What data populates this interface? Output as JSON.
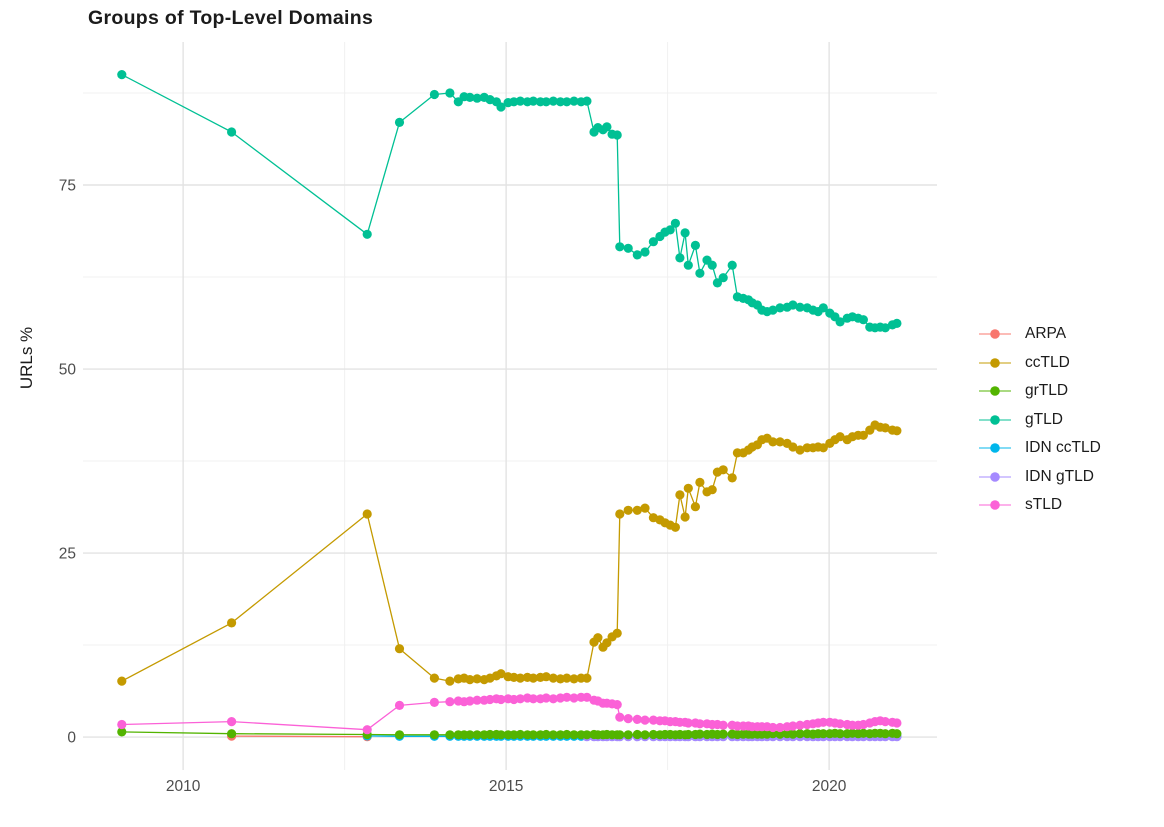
{
  "title": "Groups of Top-Level Domains",
  "colors": {
    "background": "#FFFFFF",
    "grid_major": "#E3E3E3",
    "grid_minor": "#F0F0F0",
    "tick_label": "#4D4D4D",
    "text": "#1B1B1B"
  },
  "legend": {
    "items": [
      {
        "label": "ARPA",
        "color": "#F8766D"
      },
      {
        "label": "ccTLD",
        "color": "#C49A00"
      },
      {
        "label": "grTLD",
        "color": "#53B400"
      },
      {
        "label": "gTLD",
        "color": "#00C094"
      },
      {
        "label": "IDN ccTLD",
        "color": "#00B6EB"
      },
      {
        "label": "IDN gTLD",
        "color": "#A58AFF"
      },
      {
        "label": "sTLD",
        "color": "#FB61D7"
      }
    ]
  },
  "chart_data": {
    "type": "line",
    "title": "Groups of Top-Level Domains",
    "xlabel": "",
    "ylabel": "URLs %",
    "legend_position": "right",
    "grid": true,
    "axis": {
      "xlim": [
        2008.45,
        2021.67
      ],
      "ylim": [
        -4.48,
        94.43
      ],
      "x_major": [
        2010,
        2015,
        2020
      ],
      "x_major_labels": [
        "2010",
        "2015",
        "2020"
      ],
      "x_minor": [
        2012.5,
        2017.5
      ],
      "y_major": [
        0,
        25,
        50,
        75
      ],
      "y_major_labels": [
        "0",
        "25",
        "50",
        "75"
      ],
      "y_minor": [
        12.5,
        37.5,
        62.5,
        87.5
      ]
    },
    "series": [
      {
        "name": "ARPA",
        "color": "#F8766D",
        "x": [
          2010.75,
          2012.85
        ],
        "y": [
          0.12,
          0.05
        ]
      },
      {
        "name": "IDN ccTLD",
        "color": "#00B6EB",
        "x": [
          2012.85,
          2013.35,
          2013.89,
          2014.13,
          2014.26,
          2014.35,
          2014.44,
          2014.55,
          2014.66,
          2014.75,
          2014.85,
          2014.92,
          2015.03,
          2015.12,
          2015.22,
          2015.33,
          2015.42,
          2015.53,
          2015.62,
          2015.73,
          2015.84,
          2015.94,
          2016.05,
          2016.16,
          2016.25,
          2016.36,
          2016.42,
          2016.5,
          2016.56,
          2016.64,
          2016.72,
          2016.76,
          2016.89,
          2017.03,
          2017.15,
          2017.28,
          2017.38,
          2017.46,
          2017.54,
          2017.62,
          2017.69,
          2017.77,
          2017.82,
          2017.93,
          2018.0,
          2018.11,
          2018.19,
          2018.27,
          2018.36,
          2018.5,
          2018.58,
          2018.67,
          2018.75,
          2018.81,
          2018.89,
          2018.96,
          2019.04,
          2019.13,
          2019.24,
          2019.35,
          2019.44,
          2019.55,
          2019.66,
          2019.75,
          2019.83,
          2019.91,
          2020.01,
          2020.09,
          2020.17,
          2020.28,
          2020.36,
          2020.45,
          2020.53,
          2020.63,
          2020.71,
          2020.79,
          2020.87,
          2020.98,
          2021.05
        ],
        "y": [
          0.15,
          0.1,
          0.1,
          0.1,
          0.1,
          0.1,
          0.1,
          0.1,
          0.1,
          0.1,
          0.1,
          0.1,
          0.1,
          0.1,
          0.1,
          0.1,
          0.1,
          0.1,
          0.1,
          0.1,
          0.1,
          0.1,
          0.1,
          0.1,
          0.1,
          0.1,
          0.1,
          0.1,
          0.1,
          0.1,
          0.1,
          0.1,
          0.1,
          0.1,
          0.1,
          0.1,
          0.1,
          0.1,
          0.1,
          0.1,
          0.1,
          0.1,
          0.1,
          0.1,
          0.1,
          0.1,
          0.1,
          0.1,
          0.1,
          0.1,
          0.1,
          0.1,
          0.1,
          0.1,
          0.1,
          0.1,
          0.1,
          0.1,
          0.1,
          0.1,
          0.1,
          0.1,
          0.1,
          0.1,
          0.1,
          0.1,
          0.1,
          0.1,
          0.1,
          0.1,
          0.1,
          0.1,
          0.1,
          0.1,
          0.1,
          0.1,
          0.1,
          0.1,
          0.1
        ]
      },
      {
        "name": "IDN gTLD",
        "color": "#A58AFF",
        "x": [
          2016.25,
          2016.36,
          2016.42,
          2016.5,
          2016.56,
          2016.64,
          2016.72,
          2016.76,
          2016.89,
          2017.03,
          2017.15,
          2017.28,
          2017.38,
          2017.46,
          2017.54,
          2017.62,
          2017.69,
          2017.77,
          2017.82,
          2017.93,
          2018.0,
          2018.11,
          2018.19,
          2018.27,
          2018.36,
          2018.5,
          2018.58,
          2018.67,
          2018.75,
          2018.81,
          2018.89,
          2018.96,
          2019.04,
          2019.13,
          2019.24,
          2019.35,
          2019.44,
          2019.55,
          2019.66,
          2019.75,
          2019.83,
          2019.91,
          2020.01,
          2020.09,
          2020.17,
          2020.28,
          2020.36,
          2020.45,
          2020.53,
          2020.63,
          2020.71,
          2020.79,
          2020.87,
          2020.98,
          2021.05
        ],
        "y": [
          0.05,
          0.05,
          0.05,
          0.05,
          0.05,
          0.05,
          0.05,
          0.05,
          0.05,
          0.05,
          0.05,
          0.05,
          0.05,
          0.05,
          0.05,
          0.05,
          0.05,
          0.05,
          0.05,
          0.05,
          0.05,
          0.05,
          0.05,
          0.05,
          0.05,
          0.05,
          0.05,
          0.05,
          0.05,
          0.05,
          0.05,
          0.05,
          0.05,
          0.05,
          0.05,
          0.05,
          0.05,
          0.05,
          0.05,
          0.05,
          0.05,
          0.05,
          0.05,
          0.05,
          0.05,
          0.05,
          0.05,
          0.05,
          0.05,
          0.05,
          0.05,
          0.05,
          0.05,
          0.05,
          0.05
        ]
      },
      {
        "name": "grTLD",
        "color": "#53B400",
        "x": [
          2009.05,
          2010.75,
          2012.85,
          2013.35,
          2013.89,
          2014.13,
          2014.26,
          2014.35,
          2014.44,
          2014.55,
          2014.66,
          2014.75,
          2014.85,
          2014.92,
          2015.03,
          2015.12,
          2015.22,
          2015.33,
          2015.42,
          2015.53,
          2015.62,
          2015.73,
          2015.84,
          2015.94,
          2016.05,
          2016.16,
          2016.25,
          2016.36,
          2016.42,
          2016.5,
          2016.56,
          2016.64,
          2016.72,
          2016.76,
          2016.89,
          2017.03,
          2017.15,
          2017.28,
          2017.38,
          2017.46,
          2017.54,
          2017.62,
          2017.69,
          2017.77,
          2017.82,
          2017.93,
          2018.0,
          2018.11,
          2018.19,
          2018.27,
          2018.36,
          2018.5,
          2018.58,
          2018.67,
          2018.75,
          2018.81,
          2018.89,
          2018.96,
          2019.04,
          2019.13,
          2019.24,
          2019.35,
          2019.44,
          2019.55,
          2019.66,
          2019.75,
          2019.83,
          2019.91,
          2020.01,
          2020.09,
          2020.17,
          2020.28,
          2020.36,
          2020.45,
          2020.53,
          2020.63,
          2020.71,
          2020.79,
          2020.87,
          2020.98,
          2021.05
        ],
        "y": [
          0.7,
          0.45,
          0.35,
          0.3,
          0.3,
          0.3,
          0.3,
          0.3,
          0.3,
          0.3,
          0.3,
          0.35,
          0.35,
          0.3,
          0.3,
          0.3,
          0.35,
          0.3,
          0.3,
          0.3,
          0.35,
          0.3,
          0.3,
          0.35,
          0.3,
          0.3,
          0.3,
          0.35,
          0.3,
          0.3,
          0.35,
          0.3,
          0.3,
          0.3,
          0.3,
          0.35,
          0.3,
          0.35,
          0.3,
          0.35,
          0.35,
          0.3,
          0.35,
          0.3,
          0.35,
          0.35,
          0.4,
          0.35,
          0.4,
          0.35,
          0.4,
          0.4,
          0.35,
          0.4,
          0.4,
          0.4,
          0.4,
          0.4,
          0.4,
          0.45,
          0.4,
          0.45,
          0.4,
          0.45,
          0.45,
          0.4,
          0.45,
          0.45,
          0.45,
          0.5,
          0.45,
          0.45,
          0.5,
          0.45,
          0.5,
          0.45,
          0.5,
          0.5,
          0.45,
          0.5,
          0.45
        ]
      },
      {
        "name": "ccTLD",
        "color": "#C49A00",
        "x": [
          2009.05,
          2010.75,
          2012.85,
          2013.35,
          2013.89,
          2014.13,
          2014.26,
          2014.35,
          2014.44,
          2014.55,
          2014.66,
          2014.75,
          2014.85,
          2014.92,
          2015.03,
          2015.12,
          2015.22,
          2015.33,
          2015.42,
          2015.53,
          2015.62,
          2015.73,
          2015.84,
          2015.94,
          2016.05,
          2016.16,
          2016.25,
          2016.36,
          2016.42,
          2016.5,
          2016.56,
          2016.64,
          2016.72,
          2016.76,
          2016.89,
          2017.03,
          2017.15,
          2017.28,
          2017.38,
          2017.46,
          2017.54,
          2017.62,
          2017.69,
          2017.77,
          2017.82,
          2017.93,
          2018.0,
          2018.11,
          2018.19,
          2018.27,
          2018.36,
          2018.5,
          2018.58,
          2018.67,
          2018.75,
          2018.81,
          2018.89,
          2018.96,
          2019.04,
          2019.13,
          2019.24,
          2019.35,
          2019.44,
          2019.55,
          2019.66,
          2019.75,
          2019.83,
          2019.91,
          2020.01,
          2020.09,
          2020.17,
          2020.28,
          2020.36,
          2020.45,
          2020.53,
          2020.63,
          2020.71,
          2020.79,
          2020.87,
          2020.98,
          2021.05
        ],
        "y": [
          7.6,
          15.5,
          30.3,
          12,
          8,
          7.6,
          7.9,
          8,
          7.8,
          7.9,
          7.8,
          8,
          8.3,
          8.6,
          8.2,
          8.1,
          8,
          8.1,
          8,
          8.1,
          8.2,
          8,
          7.9,
          8,
          7.9,
          8,
          8,
          12.9,
          13.5,
          12.2,
          12.8,
          13.6,
          14.1,
          30.3,
          30.8,
          30.8,
          31.1,
          29.8,
          29.5,
          29.1,
          28.8,
          28.5,
          32.9,
          29.9,
          33.8,
          31.3,
          34.6,
          33.3,
          33.6,
          36,
          36.3,
          35.2,
          38.6,
          38.6,
          39,
          39.4,
          39.7,
          40.4,
          40.6,
          40.1,
          40.1,
          39.9,
          39.4,
          39,
          39.3,
          39.3,
          39.4,
          39.3,
          39.9,
          40.4,
          40.8,
          40.4,
          40.8,
          41,
          41,
          41.7,
          42.4,
          42.1,
          42,
          41.7,
          41.6
        ]
      },
      {
        "name": "gTLD",
        "color": "#00C094",
        "x": [
          2009.05,
          2010.75,
          2012.85,
          2013.35,
          2013.89,
          2014.13,
          2014.26,
          2014.35,
          2014.44,
          2014.55,
          2014.66,
          2014.75,
          2014.85,
          2014.92,
          2015.03,
          2015.12,
          2015.22,
          2015.33,
          2015.42,
          2015.53,
          2015.62,
          2015.73,
          2015.84,
          2015.94,
          2016.05,
          2016.16,
          2016.25,
          2016.36,
          2016.42,
          2016.5,
          2016.56,
          2016.64,
          2016.72,
          2016.76,
          2016.89,
          2017.03,
          2017.15,
          2017.28,
          2017.38,
          2017.46,
          2017.54,
          2017.62,
          2017.69,
          2017.77,
          2017.82,
          2017.93,
          2018.0,
          2018.11,
          2018.19,
          2018.27,
          2018.36,
          2018.5,
          2018.58,
          2018.67,
          2018.75,
          2018.81,
          2018.89,
          2018.96,
          2019.04,
          2019.13,
          2019.24,
          2019.35,
          2019.44,
          2019.55,
          2019.66,
          2019.75,
          2019.83,
          2019.91,
          2020.01,
          2020.09,
          2020.17,
          2020.28,
          2020.36,
          2020.45,
          2020.53,
          2020.63,
          2020.71,
          2020.79,
          2020.87,
          2020.98,
          2021.05
        ],
        "y": [
          90,
          82.2,
          68.3,
          83.5,
          87.3,
          87.5,
          86.3,
          87,
          86.9,
          86.8,
          86.9,
          86.6,
          86.3,
          85.6,
          86.2,
          86.3,
          86.4,
          86.3,
          86.4,
          86.3,
          86.3,
          86.4,
          86.3,
          86.3,
          86.4,
          86.3,
          86.4,
          82.2,
          82.8,
          82.5,
          82.9,
          81.9,
          81.8,
          66.6,
          66.4,
          65.5,
          65.9,
          67.3,
          68,
          68.6,
          68.9,
          69.8,
          65.1,
          68.5,
          64.1,
          66.8,
          63,
          64.8,
          64.1,
          61.7,
          62.4,
          64.1,
          59.8,
          59.6,
          59.4,
          59,
          58.7,
          58,
          57.8,
          58,
          58.3,
          58.4,
          58.7,
          58.4,
          58.3,
          58,
          57.8,
          58.3,
          57.6,
          57.1,
          56.4,
          56.9,
          57.1,
          56.9,
          56.7,
          55.7,
          55.6,
          55.7,
          55.6,
          56,
          56.2
        ]
      },
      {
        "name": "sTLD",
        "color": "#FB61D7",
        "x": [
          2009.05,
          2010.75,
          2012.85,
          2013.35,
          2013.89,
          2014.13,
          2014.26,
          2014.35,
          2014.44,
          2014.55,
          2014.66,
          2014.75,
          2014.85,
          2014.92,
          2015.03,
          2015.12,
          2015.22,
          2015.33,
          2015.42,
          2015.53,
          2015.62,
          2015.73,
          2015.84,
          2015.94,
          2016.05,
          2016.16,
          2016.25,
          2016.36,
          2016.42,
          2016.5,
          2016.56,
          2016.64,
          2016.72,
          2016.76,
          2016.89,
          2017.03,
          2017.15,
          2017.28,
          2017.38,
          2017.46,
          2017.54,
          2017.62,
          2017.69,
          2017.77,
          2017.82,
          2017.93,
          2018.0,
          2018.11,
          2018.19,
          2018.27,
          2018.36,
          2018.5,
          2018.58,
          2018.67,
          2018.75,
          2018.81,
          2018.89,
          2018.96,
          2019.04,
          2019.13,
          2019.24,
          2019.35,
          2019.44,
          2019.55,
          2019.66,
          2019.75,
          2019.83,
          2019.91,
          2020.01,
          2020.09,
          2020.17,
          2020.28,
          2020.36,
          2020.45,
          2020.53,
          2020.63,
          2020.71,
          2020.79,
          2020.87,
          2020.98,
          2021.05
        ],
        "y": [
          1.7,
          2.1,
          1,
          4.3,
          4.7,
          4.8,
          4.9,
          4.8,
          4.9,
          5,
          5,
          5.1,
          5.2,
          5.1,
          5.2,
          5.1,
          5.2,
          5.3,
          5.2,
          5.2,
          5.3,
          5.2,
          5.3,
          5.4,
          5.3,
          5.4,
          5.4,
          5,
          4.9,
          4.6,
          4.6,
          4.5,
          4.4,
          2.7,
          2.5,
          2.4,
          2.3,
          2.3,
          2.2,
          2.2,
          2.1,
          2.1,
          2,
          2,
          1.9,
          1.9,
          1.8,
          1.8,
          1.7,
          1.7,
          1.6,
          1.6,
          1.5,
          1.5,
          1.5,
          1.4,
          1.4,
          1.4,
          1.4,
          1.3,
          1.3,
          1.4,
          1.5,
          1.6,
          1.7,
          1.8,
          1.9,
          2,
          2,
          1.9,
          1.8,
          1.7,
          1.6,
          1.6,
          1.7,
          1.9,
          2.1,
          2.2,
          2.1,
          2,
          1.9
        ]
      }
    ]
  }
}
